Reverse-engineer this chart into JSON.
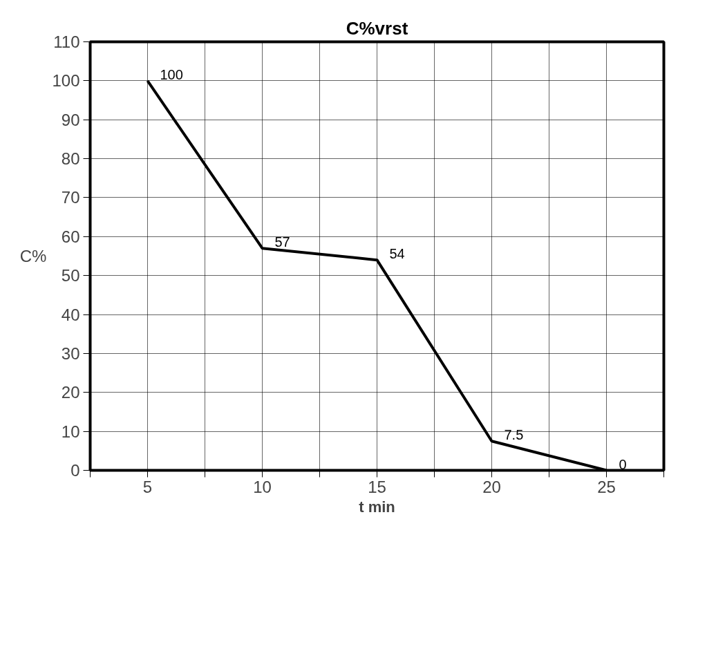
{
  "chart_data": {
    "type": "line",
    "title": "C%vrst",
    "xlabel": "t min",
    "ylabel": "C%",
    "x": [
      5,
      10,
      15,
      20,
      25
    ],
    "series": [
      {
        "color": "#000000",
        "values": [
          100,
          57,
          54,
          7.5,
          0
        ]
      }
    ],
    "xlim": [
      2.5,
      27.5
    ],
    "xticks": [
      {
        "value": 2.5,
        "label": null
      },
      5,
      {
        "value": 7.5,
        "label": null
      },
      10,
      {
        "value": 12.5,
        "label": null
      },
      15,
      {
        "value": 17.5,
        "label": null
      },
      20,
      {
        "value": 22.5,
        "label": null
      },
      25,
      {
        "value": 27.5,
        "label": null
      }
    ],
    "ylim": [
      0,
      110
    ],
    "yticks": [
      0,
      10,
      20,
      30,
      40,
      50,
      60,
      70,
      80,
      90,
      100,
      110
    ],
    "grid": true,
    "data_labels": true,
    "marker": "none",
    "line_style": "solid"
  }
}
